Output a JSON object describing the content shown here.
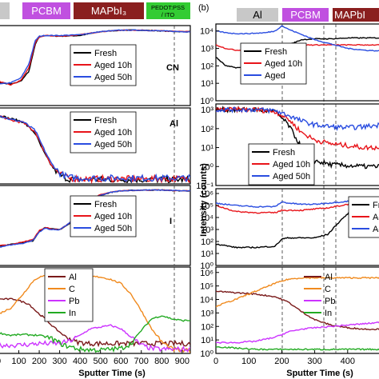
{
  "panel_b_label": "(b)",
  "layer_bands_a": [
    {
      "label": "PCBM",
      "color": "#c050e0",
      "text_color": "#ffffff"
    },
    {
      "label": "MAPbI₃",
      "color": "#8a1f1f",
      "text_color": "#ffffff"
    },
    {
      "label": "PEDOT:PSS\n/ ITO",
      "color": "#33cc33",
      "text_color": "#000000"
    }
  ],
  "layer_bands_b": [
    {
      "label": "Al",
      "color": "#c8c8c8",
      "text_color": "#000000"
    },
    {
      "label": "PCBM",
      "color": "#c050e0",
      "text_color": "#ffffff"
    },
    {
      "label": "MAPbI",
      "color": "#8a1f1f",
      "text_color": "#ffffff"
    }
  ],
  "colors": {
    "fresh": "#000000",
    "aged10": "#e8141a",
    "aged50": "#2a4de0",
    "Al": "#7a1a1a",
    "C": "#f08a1e",
    "Pb": "#cc33ff",
    "In": "#22aa22"
  },
  "chart_data": [
    {
      "panel": "a-CN",
      "type": "line",
      "label": "CN",
      "xlim": [
        0,
        940
      ],
      "x_ticks_shown": [
        200,
        300,
        400,
        500,
        600,
        700,
        800,
        900
      ],
      "legend": [
        "Fresh",
        "Aged 10h",
        "Aged 50h"
      ],
      "series": [
        {
          "name": "Fresh",
          "x": [
            0,
            60,
            110,
            150,
            180,
            200,
            230,
            300,
            400,
            500,
            600,
            700,
            800,
            900,
            940
          ],
          "y": [
            0.3,
            0.28,
            0.32,
            0.45,
            0.8,
            0.9,
            0.92,
            0.91,
            0.92,
            0.97,
            0.99,
            0.99,
            0.98,
            0.97,
            0.97
          ]
        },
        {
          "name": "Aged 10h",
          "x": [
            0,
            60,
            110,
            150,
            180,
            200,
            230,
            300,
            400,
            500,
            600,
            700,
            800,
            900,
            940
          ],
          "y": [
            0.32,
            0.27,
            0.33,
            0.5,
            0.82,
            0.9,
            0.92,
            0.91,
            0.93,
            0.97,
            0.99,
            0.99,
            0.98,
            0.97,
            0.97
          ]
        },
        {
          "name": "Aged 50h",
          "x": [
            0,
            60,
            110,
            150,
            180,
            200,
            230,
            300,
            400,
            500,
            600,
            700,
            800,
            900,
            940
          ],
          "y": [
            0.28,
            0.3,
            0.36,
            0.55,
            0.85,
            0.91,
            0.92,
            0.92,
            0.93,
            0.97,
            0.99,
            0.99,
            0.98,
            0.97,
            0.97
          ]
        }
      ]
    },
    {
      "panel": "a-Al",
      "type": "line",
      "label": "Al",
      "xlim": [
        0,
        940
      ],
      "legend": [
        "Fresh",
        "Aged 10h",
        "Aged 50h"
      ],
      "series": [
        {
          "name": "Fresh",
          "x": [
            0,
            60,
            120,
            180,
            220,
            260,
            300,
            340,
            400,
            500,
            600,
            700,
            800,
            900,
            940
          ],
          "y": [
            0.95,
            0.9,
            0.86,
            0.7,
            0.45,
            0.25,
            0.12,
            0.07,
            0.06,
            0.06,
            0.06,
            0.06,
            0.06,
            0.06,
            0.06
          ]
        },
        {
          "name": "Aged 10h",
          "x": [
            0,
            60,
            120,
            180,
            220,
            260,
            300,
            340,
            400,
            500,
            600,
            700,
            800,
            900,
            940
          ],
          "y": [
            0.95,
            0.88,
            0.85,
            0.72,
            0.48,
            0.26,
            0.14,
            0.08,
            0.07,
            0.07,
            0.07,
            0.07,
            0.07,
            0.07,
            0.07
          ]
        },
        {
          "name": "Aged 50h",
          "x": [
            0,
            60,
            120,
            180,
            220,
            260,
            300,
            340,
            400,
            500,
            600,
            700,
            800,
            900,
            940
          ],
          "y": [
            0.95,
            0.89,
            0.86,
            0.74,
            0.5,
            0.28,
            0.15,
            0.09,
            0.08,
            0.08,
            0.08,
            0.08,
            0.08,
            0.08,
            0.08
          ]
        }
      ]
    },
    {
      "panel": "a-I",
      "type": "line",
      "label": "I",
      "xlim": [
        0,
        940
      ],
      "legend": [
        "Fresh",
        "Aged 10h",
        "Aged 50h"
      ],
      "series": [
        {
          "name": "Fresh",
          "x": [
            0,
            60,
            120,
            170,
            200,
            230,
            260,
            300,
            350,
            400,
            450,
            500,
            550,
            600,
            700,
            800,
            900,
            940
          ],
          "y": [
            0.25,
            0.28,
            0.3,
            0.32,
            0.45,
            0.5,
            0.48,
            0.47,
            0.55,
            0.72,
            0.85,
            0.92,
            0.96,
            0.98,
            0.99,
            0.99,
            0.98,
            0.98
          ]
        },
        {
          "name": "Aged 10h",
          "x": [
            0,
            60,
            120,
            170,
            200,
            230,
            260,
            300,
            350,
            400,
            450,
            500,
            550,
            600,
            700,
            800,
            900,
            940
          ],
          "y": [
            0.26,
            0.27,
            0.31,
            0.34,
            0.46,
            0.5,
            0.48,
            0.47,
            0.56,
            0.74,
            0.86,
            0.93,
            0.96,
            0.98,
            0.99,
            0.99,
            0.98,
            0.98
          ]
        },
        {
          "name": "Aged 50h",
          "x": [
            0,
            60,
            120,
            170,
            200,
            230,
            260,
            300,
            350,
            400,
            450,
            500,
            550,
            600,
            700,
            800,
            900,
            940
          ],
          "y": [
            0.24,
            0.27,
            0.29,
            0.33,
            0.44,
            0.49,
            0.47,
            0.47,
            0.56,
            0.73,
            0.85,
            0.92,
            0.96,
            0.98,
            0.99,
            0.99,
            0.98,
            0.98
          ]
        }
      ]
    },
    {
      "panel": "a-elements",
      "type": "line",
      "xlim": [
        0,
        940
      ],
      "xlabel": "Sputter Time (s)",
      "x_ticks": [
        0,
        100,
        200,
        300,
        400,
        500,
        600,
        700,
        800,
        900
      ],
      "legend": [
        "Al",
        "C",
        "Pb",
        "In"
      ],
      "series": [
        {
          "name": "Al",
          "x": [
            0,
            80,
            150,
            190,
            230,
            270,
            320,
            380,
            440,
            500,
            600,
            700,
            800,
            900,
            940
          ],
          "y": [
            0.66,
            0.66,
            0.6,
            0.5,
            0.42,
            0.32,
            0.22,
            0.14,
            0.12,
            0.12,
            0.12,
            0.12,
            0.12,
            0.12,
            0.12
          ]
        },
        {
          "name": "C",
          "x": [
            0,
            60,
            120,
            170,
            200,
            230,
            300,
            400,
            500,
            550,
            600,
            650,
            700,
            750,
            800,
            850,
            900,
            940
          ],
          "y": [
            0.48,
            0.55,
            0.72,
            0.88,
            0.93,
            0.94,
            0.94,
            0.94,
            0.93,
            0.9,
            0.85,
            0.72,
            0.52,
            0.3,
            0.14,
            0.05,
            0.03,
            0.03
          ]
        },
        {
          "name": "Pb",
          "x": [
            0,
            100,
            200,
            300,
            350,
            400,
            450,
            500,
            550,
            600,
            650,
            700,
            750,
            800,
            900,
            940
          ],
          "y": [
            0.1,
            0.1,
            0.12,
            0.12,
            0.15,
            0.22,
            0.3,
            0.32,
            0.34,
            0.3,
            0.2,
            0.1,
            0.06,
            0.05,
            0.05,
            0.05
          ]
        },
        {
          "name": "In",
          "x": [
            0,
            60,
            120,
            200,
            260,
            320,
            400,
            500,
            600,
            650,
            700,
            750,
            800,
            850,
            900,
            940
          ],
          "y": [
            0.25,
            0.22,
            0.23,
            0.22,
            0.18,
            0.1,
            0.05,
            0.04,
            0.06,
            0.12,
            0.28,
            0.42,
            0.46,
            0.42,
            0.4,
            0.4
          ]
        }
      ]
    },
    {
      "panel": "b-top",
      "type": "line",
      "ylabel": "Intensity (counts)",
      "y_scale": "log",
      "ylim_exp": [
        0,
        4
      ],
      "y_ticks": [
        "10⁰",
        "10¹",
        "10²",
        "10³",
        "10⁴"
      ],
      "xlim": [
        0,
        500
      ],
      "legend": [
        "Fresh",
        "Aged 10h",
        "Aged"
      ],
      "series": [
        {
          "name": "Fresh",
          "x": [
            0,
            30,
            60,
            100,
            150,
            180,
            200,
            220,
            260,
            300,
            350,
            400,
            450,
            500
          ],
          "y": [
            2.5,
            2.0,
            1.9,
            1.9,
            2.0,
            2.1,
            2.6,
            3.2,
            3.5,
            3.55,
            3.55,
            3.6,
            3.6,
            3.6
          ]
        },
        {
          "name": "Aged 10h",
          "x": [
            0,
            30,
            60,
            100,
            150,
            180,
            200,
            220,
            260,
            300,
            350,
            400,
            450,
            500
          ],
          "y": [
            3.2,
            3.0,
            2.9,
            2.9,
            3.0,
            3.0,
            3.2,
            3.2,
            3.2,
            3.2,
            3.2,
            3.2,
            3.2,
            3.2
          ]
        },
        {
          "name": "Aged",
          "x": [
            0,
            30,
            60,
            100,
            150,
            180,
            200,
            220,
            260,
            300,
            350,
            400,
            450,
            500
          ],
          "y": [
            4.0,
            3.9,
            3.85,
            3.85,
            3.9,
            4.0,
            4.3,
            4.1,
            3.8,
            3.5,
            3.25,
            3.0,
            2.9,
            2.85
          ]
        }
      ]
    },
    {
      "panel": "b-mid",
      "type": "line",
      "y_scale": "log",
      "ylim_exp": [
        -1,
        3
      ],
      "y_ticks": [
        "10⁻¹",
        "10⁰",
        "10¹",
        "10²",
        "10³"
      ],
      "xlim": [
        0,
        500
      ],
      "legend": [
        "Fresh",
        "Aged 10h",
        "Aged 50h"
      ],
      "series": [
        {
          "name": "Fresh",
          "x": [
            0,
            60,
            120,
            180,
            220,
            260,
            300,
            350,
            400,
            450,
            500
          ],
          "y": [
            3.0,
            3.0,
            3.0,
            2.9,
            2.2,
            1.0,
            0.3,
            0.1,
            0.05,
            0.0,
            0.0
          ]
        },
        {
          "name": "Aged 10h",
          "x": [
            0,
            60,
            120,
            180,
            220,
            260,
            300,
            350,
            400,
            450,
            500
          ],
          "y": [
            3.0,
            3.0,
            3.0,
            2.9,
            2.5,
            1.8,
            1.4,
            1.2,
            1.1,
            1.0,
            1.0
          ]
        },
        {
          "name": "Aged 50h",
          "x": [
            0,
            60,
            120,
            180,
            220,
            260,
            300,
            350,
            400,
            450,
            500
          ],
          "y": [
            3.0,
            3.0,
            3.0,
            2.95,
            2.7,
            2.4,
            2.2,
            2.1,
            2.05,
            2.1,
            2.2
          ]
        }
      ]
    },
    {
      "panel": "b-low",
      "type": "line",
      "y_scale": "log",
      "ylim_exp": [
        0,
        6
      ],
      "y_ticks": [
        "10⁰",
        "10¹",
        "10²",
        "10³",
        "10⁴",
        "10⁵",
        "10⁶"
      ],
      "xlim": [
        0,
        500
      ],
      "legend": [
        "Fresh",
        "AgedI",
        "AgedI"
      ],
      "series": [
        {
          "name": "Fresh",
          "x": [
            0,
            60,
            120,
            180,
            200,
            220,
            260,
            300,
            340,
            380,
            420,
            460,
            500
          ],
          "y": [
            1.8,
            1.5,
            1.5,
            1.6,
            2.2,
            2.3,
            2.3,
            2.3,
            2.6,
            3.8,
            4.8,
            5.4,
            5.6
          ]
        },
        {
          "name": "AgedI",
          "x": [
            0,
            60,
            120,
            180,
            200,
            220,
            260,
            300,
            340,
            380,
            420,
            460,
            500
          ],
          "y": [
            5.0,
            4.5,
            4.4,
            4.4,
            4.6,
            4.6,
            4.6,
            4.7,
            4.8,
            5.0,
            5.2,
            5.4,
            5.6
          ]
        },
        {
          "name": "AgedI",
          "x": [
            0,
            60,
            120,
            180,
            200,
            220,
            260,
            300,
            340,
            380,
            420,
            460,
            500
          ],
          "y": [
            5.2,
            5.0,
            4.9,
            4.9,
            5.3,
            5.2,
            5.1,
            5.1,
            5.2,
            5.3,
            5.4,
            5.5,
            5.6
          ]
        }
      ]
    },
    {
      "panel": "b-bottom",
      "type": "line",
      "y_scale": "log",
      "ylim_exp": [
        0,
        6
      ],
      "y_ticks": [
        "10⁰",
        "10¹",
        "10²",
        "10³",
        "10⁴",
        "10⁵",
        "10⁶"
      ],
      "xlim": [
        0,
        500
      ],
      "xlabel": "Sputter Time (s)",
      "x_ticks": [
        0,
        100,
        200,
        300,
        400
      ],
      "series": [
        {
          "name": "Al",
          "x": [
            0,
            60,
            120,
            180,
            220,
            260,
            300,
            350,
            400,
            450,
            500
          ],
          "y": [
            4.6,
            4.5,
            4.4,
            4.2,
            3.8,
            3.1,
            2.5,
            2.1,
            1.9,
            1.8,
            1.8
          ]
        },
        {
          "name": "C",
          "x": [
            0,
            60,
            120,
            180,
            220,
            260,
            300,
            350,
            400,
            450,
            500
          ],
          "y": [
            3.5,
            4.0,
            4.6,
            5.2,
            5.5,
            5.6,
            5.6,
            5.6,
            5.6,
            5.6,
            5.6
          ]
        },
        {
          "name": "Pb",
          "x": [
            0,
            60,
            120,
            180,
            220,
            260,
            300,
            350,
            400,
            450,
            500
          ],
          "y": [
            0.8,
            0.8,
            0.9,
            1.2,
            1.6,
            1.8,
            1.9,
            2.0,
            2.1,
            2.2,
            2.3
          ]
        },
        {
          "name": "In",
          "x": [
            0,
            60,
            120,
            180,
            220,
            260,
            300,
            350,
            400,
            450,
            500
          ],
          "y": [
            0.5,
            0.4,
            0.3,
            0.3,
            0.3,
            0.3,
            0.3,
            0.3,
            0.3,
            0.3,
            0.3
          ]
        }
      ]
    }
  ]
}
